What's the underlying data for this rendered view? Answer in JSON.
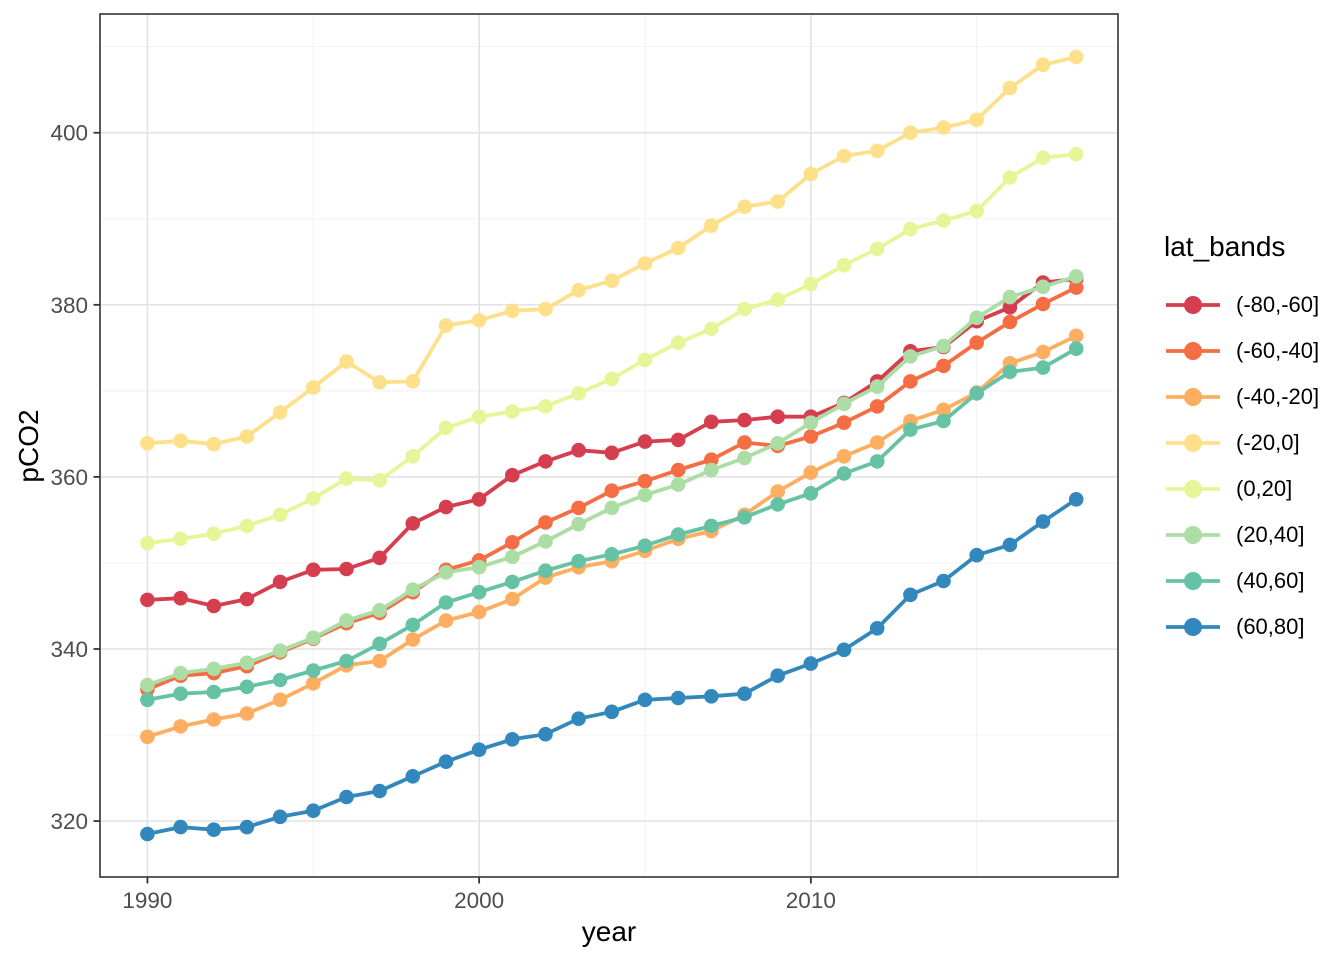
{
  "figure": {
    "background": "#ffffff"
  },
  "theme": {
    "panel_background": "#ffffff",
    "panel_border": "#333333",
    "grid_major": "#e4e4e4",
    "grid_minor": "#f0f0f0",
    "tick_color": "#333333",
    "tick_label_color": "#4d4d4d",
    "text_color": "#000000"
  },
  "chart_data": {
    "type": "line",
    "title": "",
    "xlabel": "year",
    "ylabel": "pCO2",
    "legend_title": "lat_bands",
    "legend_position": "right",
    "grid": true,
    "points": true,
    "xlim": [
      1988.57,
      2019.26
    ],
    "ylim": [
      313.5,
      413.8
    ],
    "x_ticks": [
      1990,
      2000,
      2010
    ],
    "x_minor_ticks": [
      1995,
      2005,
      2015
    ],
    "y_ticks": [
      320,
      340,
      360,
      380,
      400
    ],
    "y_minor_ticks": [
      330,
      350,
      370,
      390,
      410
    ],
    "x": [
      1990,
      1991,
      1992,
      1993,
      1994,
      1995,
      1996,
      1997,
      1998,
      1999,
      2000,
      2001,
      2002,
      2003,
      2004,
      2005,
      2006,
      2007,
      2008,
      2009,
      2010,
      2011,
      2012,
      2013,
      2014,
      2015,
      2016,
      2017,
      2018
    ],
    "series": [
      {
        "name": "(-80,-60]",
        "color": "#d53e4f",
        "values": [
          345.7,
          345.9,
          345.0,
          345.8,
          347.8,
          349.2,
          349.3,
          350.6,
          354.6,
          356.5,
          357.4,
          360.2,
          361.8,
          363.1,
          362.8,
          364.1,
          364.3,
          366.4,
          366.6,
          367.0,
          367.0,
          368.6,
          371.1,
          374.6,
          375.1,
          378.1,
          379.7,
          382.6,
          383.0
        ]
      },
      {
        "name": "(-60,-40]",
        "color": "#f46d43",
        "values": [
          335.3,
          336.9,
          337.2,
          338.0,
          339.6,
          341.2,
          343.0,
          344.2,
          346.6,
          349.2,
          350.3,
          352.4,
          354.7,
          356.4,
          358.4,
          359.5,
          360.8,
          362.0,
          364.0,
          363.6,
          364.7,
          366.3,
          368.2,
          371.1,
          372.9,
          375.6,
          378.0,
          380.1,
          382.0
        ]
      },
      {
        "name": "(-40,-20]",
        "color": "#fdae61",
        "values": [
          329.8,
          331.0,
          331.8,
          332.5,
          334.1,
          336.0,
          338.1,
          338.6,
          341.1,
          343.3,
          344.3,
          345.8,
          348.3,
          349.5,
          350.2,
          351.4,
          352.8,
          353.7,
          355.6,
          358.3,
          360.5,
          362.4,
          364.0,
          366.5,
          367.8,
          369.8,
          373.2,
          374.5,
          376.4
        ]
      },
      {
        "name": "(-20,0]",
        "color": "#fee08b",
        "values": [
          363.9,
          364.2,
          363.8,
          364.7,
          367.5,
          370.4,
          373.4,
          371.0,
          371.1,
          377.6,
          378.2,
          379.3,
          379.5,
          381.7,
          382.8,
          384.8,
          386.6,
          389.2,
          391.4,
          392.0,
          395.2,
          397.3,
          397.9,
          400.0,
          400.6,
          401.5,
          405.2,
          407.9,
          408.8
        ]
      },
      {
        "name": "(0,20]",
        "color": "#e6f598",
        "values": [
          352.3,
          352.8,
          353.4,
          354.3,
          355.6,
          357.5,
          359.8,
          359.6,
          362.4,
          365.7,
          367.0,
          367.6,
          368.2,
          369.7,
          371.4,
          373.6,
          375.6,
          377.2,
          379.5,
          380.6,
          382.4,
          384.6,
          386.5,
          388.8,
          389.8,
          390.9,
          394.8,
          397.1,
          397.5
        ]
      },
      {
        "name": "(20,40]",
        "color": "#abdda4",
        "values": [
          335.8,
          337.2,
          337.7,
          338.4,
          339.8,
          341.3,
          343.3,
          344.5,
          346.9,
          348.9,
          349.5,
          350.7,
          352.5,
          354.5,
          356.4,
          357.9,
          359.1,
          360.8,
          362.2,
          363.9,
          366.3,
          368.5,
          370.5,
          374.0,
          375.2,
          378.5,
          380.9,
          382.1,
          383.3
        ]
      },
      {
        "name": "(40,60]",
        "color": "#66c2a5",
        "values": [
          334.1,
          334.8,
          335.0,
          335.6,
          336.4,
          337.5,
          338.6,
          340.6,
          342.8,
          345.4,
          346.6,
          347.8,
          349.1,
          350.2,
          351.0,
          352.0,
          353.3,
          354.3,
          355.3,
          356.8,
          358.1,
          360.4,
          361.8,
          365.5,
          366.5,
          369.7,
          372.2,
          372.7,
          374.9
        ]
      },
      {
        "name": "(60,80]",
        "color": "#3288bd",
        "values": [
          318.5,
          319.3,
          319.0,
          319.3,
          320.5,
          321.2,
          322.8,
          323.5,
          325.2,
          326.9,
          328.3,
          329.5,
          330.1,
          331.9,
          332.7,
          334.1,
          334.3,
          334.5,
          334.8,
          336.9,
          338.3,
          339.9,
          342.4,
          346.3,
          347.9,
          350.9,
          352.1,
          354.8,
          357.4
        ]
      }
    ]
  }
}
